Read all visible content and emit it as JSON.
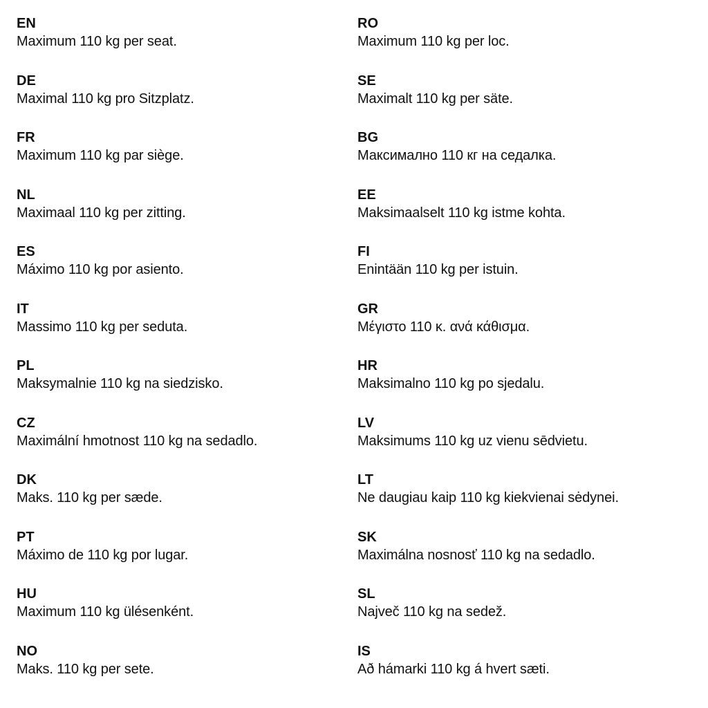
{
  "columns": [
    [
      {
        "code": "EN",
        "text": "Maximum 110 kg per seat."
      },
      {
        "code": "DE",
        "text": "Maximal 110 kg pro Sitzplatz."
      },
      {
        "code": "FR",
        "text": "Maximum 110 kg par siège."
      },
      {
        "code": "NL",
        "text": "Maximaal 110 kg per zitting."
      },
      {
        "code": "ES",
        "text": "Máximo 110 kg por asiento."
      },
      {
        "code": "IT",
        "text": "Massimo 110 kg per seduta."
      },
      {
        "code": "PL",
        "text": "Maksymalnie 110 kg na siedzisko."
      },
      {
        "code": "CZ",
        "text": "Maximální hmotnost 110 kg na sedadlo."
      },
      {
        "code": "DK",
        "text": "Maks. 110 kg per sæde."
      },
      {
        "code": "PT",
        "text": "Máximo de 110 kg por lugar."
      },
      {
        "code": "HU",
        "text": "Maximum 110 kg ülésenként."
      },
      {
        "code": "NO",
        "text": "Maks. 110 kg per sete."
      }
    ],
    [
      {
        "code": "RO",
        "text": "Maximum 110 kg per loc."
      },
      {
        "code": "SE",
        "text": "Maximalt 110 kg per säte."
      },
      {
        "code": "BG",
        "text": "Максимално 110 кг на седалка."
      },
      {
        "code": "EE",
        "text": "Maksimaalselt 110 kg istme kohta."
      },
      {
        "code": "FI",
        "text": "Enintään 110 kg per istuin."
      },
      {
        "code": "GR",
        "text": "Μέγιστο 110 κ. ανά κάθισμα."
      },
      {
        "code": "HR",
        "text": "Maksimalno 110 kg po sjedalu."
      },
      {
        "code": "LV",
        "text": "Maksimums 110 kg uz vienu sēdvietu."
      },
      {
        "code": "LT",
        "text": "Ne daugiau kaip 110 kg kiekvienai sėdynei."
      },
      {
        "code": "SK",
        "text": "Maximálna nosnosť 110 kg na sedadlo."
      },
      {
        "code": "SL",
        "text": "Največ 110 kg na sedež."
      },
      {
        "code": "IS",
        "text": "Að hámarki 110 kg á hvert sæti."
      }
    ]
  ]
}
